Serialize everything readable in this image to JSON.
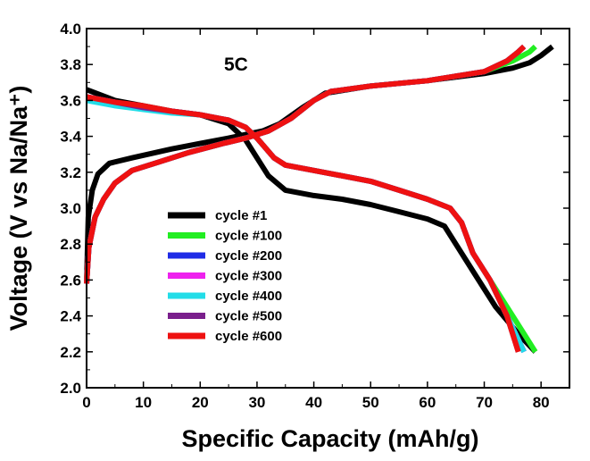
{
  "chart_data": {
    "type": "line",
    "annotation": "5C",
    "xlabel": "Specific Capacity (mAh/g)",
    "ylabel": "Voltage (V vs Na/Na⁺)",
    "xlim": [
      0,
      85
    ],
    "ylim": [
      2.0,
      4.0
    ],
    "x_ticks": [
      0,
      10,
      20,
      30,
      40,
      50,
      60,
      70,
      80
    ],
    "y_ticks": [
      "2.0",
      "2.2",
      "2.4",
      "2.6",
      "2.8",
      "3.0",
      "3.2",
      "3.4",
      "3.6",
      "3.8",
      "4.0"
    ],
    "grid": false,
    "legend_position": "lower-left",
    "series": [
      {
        "name": "cycle #1",
        "color": "#000000",
        "charge": [
          [
            0,
            2.58
          ],
          [
            0.3,
            2.95
          ],
          [
            1,
            3.1
          ],
          [
            2,
            3.19
          ],
          [
            4,
            3.25
          ],
          [
            8,
            3.28
          ],
          [
            15,
            3.33
          ],
          [
            20,
            3.36
          ],
          [
            25,
            3.39
          ],
          [
            28,
            3.41
          ],
          [
            31,
            3.43
          ],
          [
            34,
            3.47
          ],
          [
            38,
            3.56
          ],
          [
            42,
            3.64
          ],
          [
            50,
            3.68
          ],
          [
            60,
            3.71
          ],
          [
            70,
            3.75
          ],
          [
            75,
            3.78
          ],
          [
            78,
            3.81
          ],
          [
            80,
            3.85
          ],
          [
            82,
            3.9
          ]
        ],
        "discharge": [
          [
            0,
            3.66
          ],
          [
            5,
            3.6
          ],
          [
            10,
            3.57
          ],
          [
            15,
            3.54
          ],
          [
            20,
            3.52
          ],
          [
            25,
            3.47
          ],
          [
            28,
            3.38
          ],
          [
            30,
            3.28
          ],
          [
            32,
            3.18
          ],
          [
            35,
            3.1
          ],
          [
            40,
            3.07
          ],
          [
            45,
            3.05
          ],
          [
            50,
            3.02
          ],
          [
            55,
            2.98
          ],
          [
            60,
            2.94
          ],
          [
            63,
            2.9
          ],
          [
            65,
            2.8
          ],
          [
            68,
            2.65
          ],
          [
            72,
            2.45
          ],
          [
            76,
            2.3
          ],
          [
            79,
            2.2
          ]
        ]
      },
      {
        "name": "cycle #100",
        "color": "#22ee22",
        "charge": [
          [
            0,
            2.58
          ],
          [
            0.4,
            2.78
          ],
          [
            1.5,
            2.95
          ],
          [
            3,
            3.05
          ],
          [
            5,
            3.14
          ],
          [
            8,
            3.21
          ],
          [
            12,
            3.25
          ],
          [
            18,
            3.31
          ],
          [
            24,
            3.36
          ],
          [
            28,
            3.39
          ],
          [
            32,
            3.43
          ],
          [
            36,
            3.5
          ],
          [
            40,
            3.6
          ],
          [
            43,
            3.65
          ],
          [
            50,
            3.68
          ],
          [
            60,
            3.71
          ],
          [
            70,
            3.76
          ],
          [
            75,
            3.82
          ],
          [
            78,
            3.87
          ],
          [
            79,
            3.9
          ]
        ],
        "discharge": [
          [
            0,
            3.62
          ],
          [
            5,
            3.59
          ],
          [
            10,
            3.56
          ],
          [
            15,
            3.54
          ],
          [
            20,
            3.52
          ],
          [
            25,
            3.49
          ],
          [
            28,
            3.45
          ],
          [
            30,
            3.39
          ],
          [
            33,
            3.28
          ],
          [
            35,
            3.24
          ],
          [
            40,
            3.21
          ],
          [
            45,
            3.18
          ],
          [
            50,
            3.15
          ],
          [
            55,
            3.1
          ],
          [
            60,
            3.05
          ],
          [
            64,
            3.0
          ],
          [
            66,
            2.92
          ],
          [
            68,
            2.75
          ],
          [
            71,
            2.6
          ],
          [
            75,
            2.4
          ],
          [
            79,
            2.2
          ]
        ]
      },
      {
        "name": "cycle #200",
        "color": "#1f2be6",
        "charge": [
          [
            0,
            2.58
          ],
          [
            0.4,
            2.78
          ],
          [
            1.5,
            2.95
          ],
          [
            3,
            3.05
          ],
          [
            5,
            3.14
          ],
          [
            8,
            3.21
          ],
          [
            12,
            3.25
          ],
          [
            18,
            3.31
          ],
          [
            24,
            3.36
          ],
          [
            28,
            3.39
          ],
          [
            32,
            3.43
          ],
          [
            36,
            3.5
          ],
          [
            40,
            3.6
          ],
          [
            43,
            3.65
          ],
          [
            50,
            3.68
          ],
          [
            60,
            3.71
          ],
          [
            70,
            3.76
          ],
          [
            74,
            3.82
          ],
          [
            76,
            3.87
          ],
          [
            77,
            3.9
          ]
        ],
        "discharge": [
          [
            0,
            3.62
          ],
          [
            5,
            3.59
          ],
          [
            10,
            3.56
          ],
          [
            15,
            3.54
          ],
          [
            20,
            3.52
          ],
          [
            25,
            3.49
          ],
          [
            28,
            3.45
          ],
          [
            30,
            3.39
          ],
          [
            33,
            3.28
          ],
          [
            35,
            3.24
          ],
          [
            40,
            3.21
          ],
          [
            45,
            3.18
          ],
          [
            50,
            3.15
          ],
          [
            55,
            3.1
          ],
          [
            60,
            3.05
          ],
          [
            64,
            3.0
          ],
          [
            66,
            2.92
          ],
          [
            68,
            2.75
          ],
          [
            71,
            2.6
          ],
          [
            74,
            2.4
          ],
          [
            77,
            2.2
          ]
        ]
      },
      {
        "name": "cycle #300",
        "color": "#ee22ee",
        "charge": [
          [
            0,
            2.58
          ],
          [
            0.4,
            2.78
          ],
          [
            1.5,
            2.95
          ],
          [
            3,
            3.05
          ],
          [
            5,
            3.14
          ],
          [
            8,
            3.21
          ],
          [
            12,
            3.25
          ],
          [
            18,
            3.31
          ],
          [
            24,
            3.36
          ],
          [
            28,
            3.39
          ],
          [
            32,
            3.43
          ],
          [
            36,
            3.5
          ],
          [
            40,
            3.6
          ],
          [
            43,
            3.65
          ],
          [
            50,
            3.68
          ],
          [
            60,
            3.71
          ],
          [
            70,
            3.76
          ],
          [
            74,
            3.82
          ],
          [
            76,
            3.87
          ],
          [
            77,
            3.9
          ]
        ],
        "discharge": [
          [
            0,
            3.62
          ],
          [
            5,
            3.59
          ],
          [
            10,
            3.56
          ],
          [
            15,
            3.54
          ],
          [
            20,
            3.52
          ],
          [
            25,
            3.49
          ],
          [
            28,
            3.45
          ],
          [
            30,
            3.39
          ],
          [
            33,
            3.28
          ],
          [
            35,
            3.24
          ],
          [
            40,
            3.21
          ],
          [
            45,
            3.18
          ],
          [
            50,
            3.15
          ],
          [
            55,
            3.1
          ],
          [
            60,
            3.05
          ],
          [
            64,
            3.0
          ],
          [
            66,
            2.92
          ],
          [
            68,
            2.75
          ],
          [
            71,
            2.6
          ],
          [
            74,
            2.4
          ],
          [
            77,
            2.2
          ]
        ]
      },
      {
        "name": "cycle #400",
        "color": "#22dde8",
        "charge": [
          [
            0,
            2.58
          ],
          [
            0.4,
            2.78
          ],
          [
            1.5,
            2.95
          ],
          [
            3,
            3.05
          ],
          [
            5,
            3.14
          ],
          [
            8,
            3.21
          ],
          [
            12,
            3.25
          ],
          [
            18,
            3.31
          ],
          [
            24,
            3.36
          ],
          [
            28,
            3.39
          ],
          [
            32,
            3.43
          ],
          [
            36,
            3.5
          ],
          [
            40,
            3.6
          ],
          [
            43,
            3.65
          ],
          [
            50,
            3.68
          ],
          [
            60,
            3.71
          ],
          [
            70,
            3.76
          ],
          [
            74,
            3.82
          ],
          [
            76,
            3.87
          ],
          [
            77,
            3.9
          ]
        ],
        "discharge": [
          [
            0,
            3.6
          ],
          [
            5,
            3.57
          ],
          [
            10,
            3.55
          ],
          [
            15,
            3.53
          ],
          [
            20,
            3.52
          ],
          [
            25,
            3.49
          ],
          [
            28,
            3.45
          ],
          [
            30,
            3.39
          ],
          [
            33,
            3.28
          ],
          [
            35,
            3.24
          ],
          [
            40,
            3.21
          ],
          [
            45,
            3.18
          ],
          [
            50,
            3.15
          ],
          [
            55,
            3.1
          ],
          [
            60,
            3.05
          ],
          [
            64,
            3.0
          ],
          [
            66,
            2.92
          ],
          [
            68,
            2.75
          ],
          [
            71,
            2.6
          ],
          [
            74,
            2.4
          ],
          [
            77,
            2.2
          ]
        ]
      },
      {
        "name": "cycle #500",
        "color": "#7a1f8c",
        "charge": [
          [
            0,
            2.58
          ],
          [
            0.4,
            2.78
          ],
          [
            1.5,
            2.95
          ],
          [
            3,
            3.05
          ],
          [
            5,
            3.14
          ],
          [
            8,
            3.21
          ],
          [
            12,
            3.25
          ],
          [
            18,
            3.31
          ],
          [
            24,
            3.36
          ],
          [
            28,
            3.39
          ],
          [
            32,
            3.43
          ],
          [
            36,
            3.5
          ],
          [
            40,
            3.6
          ],
          [
            43,
            3.65
          ],
          [
            50,
            3.68
          ],
          [
            60,
            3.71
          ],
          [
            70,
            3.76
          ],
          [
            74,
            3.82
          ],
          [
            76,
            3.87
          ],
          [
            77,
            3.9
          ]
        ],
        "discharge": [
          [
            0,
            3.62
          ],
          [
            5,
            3.59
          ],
          [
            10,
            3.56
          ],
          [
            15,
            3.54
          ],
          [
            20,
            3.52
          ],
          [
            25,
            3.49
          ],
          [
            28,
            3.45
          ],
          [
            30,
            3.39
          ],
          [
            33,
            3.28
          ],
          [
            35,
            3.24
          ],
          [
            40,
            3.21
          ],
          [
            45,
            3.18
          ],
          [
            50,
            3.15
          ],
          [
            55,
            3.1
          ],
          [
            60,
            3.05
          ],
          [
            64,
            3.0
          ],
          [
            66,
            2.92
          ],
          [
            68,
            2.75
          ],
          [
            71,
            2.6
          ],
          [
            74,
            2.4
          ],
          [
            76,
            2.2
          ]
        ]
      },
      {
        "name": "cycle #600",
        "color": "#ee1111",
        "charge": [
          [
            0,
            2.58
          ],
          [
            0.4,
            2.78
          ],
          [
            1.5,
            2.95
          ],
          [
            3,
            3.05
          ],
          [
            5,
            3.14
          ],
          [
            8,
            3.21
          ],
          [
            12,
            3.25
          ],
          [
            18,
            3.31
          ],
          [
            24,
            3.36
          ],
          [
            28,
            3.39
          ],
          [
            32,
            3.43
          ],
          [
            36,
            3.5
          ],
          [
            40,
            3.6
          ],
          [
            43,
            3.65
          ],
          [
            50,
            3.68
          ],
          [
            60,
            3.71
          ],
          [
            70,
            3.76
          ],
          [
            74,
            3.82
          ],
          [
            76,
            3.87
          ],
          [
            77,
            3.9
          ]
        ],
        "discharge": [
          [
            0,
            3.62
          ],
          [
            5,
            3.59
          ],
          [
            10,
            3.57
          ],
          [
            15,
            3.54
          ],
          [
            20,
            3.52
          ],
          [
            25,
            3.49
          ],
          [
            28,
            3.45
          ],
          [
            30,
            3.39
          ],
          [
            33,
            3.28
          ],
          [
            35,
            3.24
          ],
          [
            40,
            3.21
          ],
          [
            45,
            3.18
          ],
          [
            50,
            3.15
          ],
          [
            55,
            3.1
          ],
          [
            60,
            3.05
          ],
          [
            64,
            3.0
          ],
          [
            66,
            2.92
          ],
          [
            68,
            2.75
          ],
          [
            71,
            2.6
          ],
          [
            74,
            2.4
          ],
          [
            76,
            2.2
          ]
        ]
      }
    ]
  }
}
